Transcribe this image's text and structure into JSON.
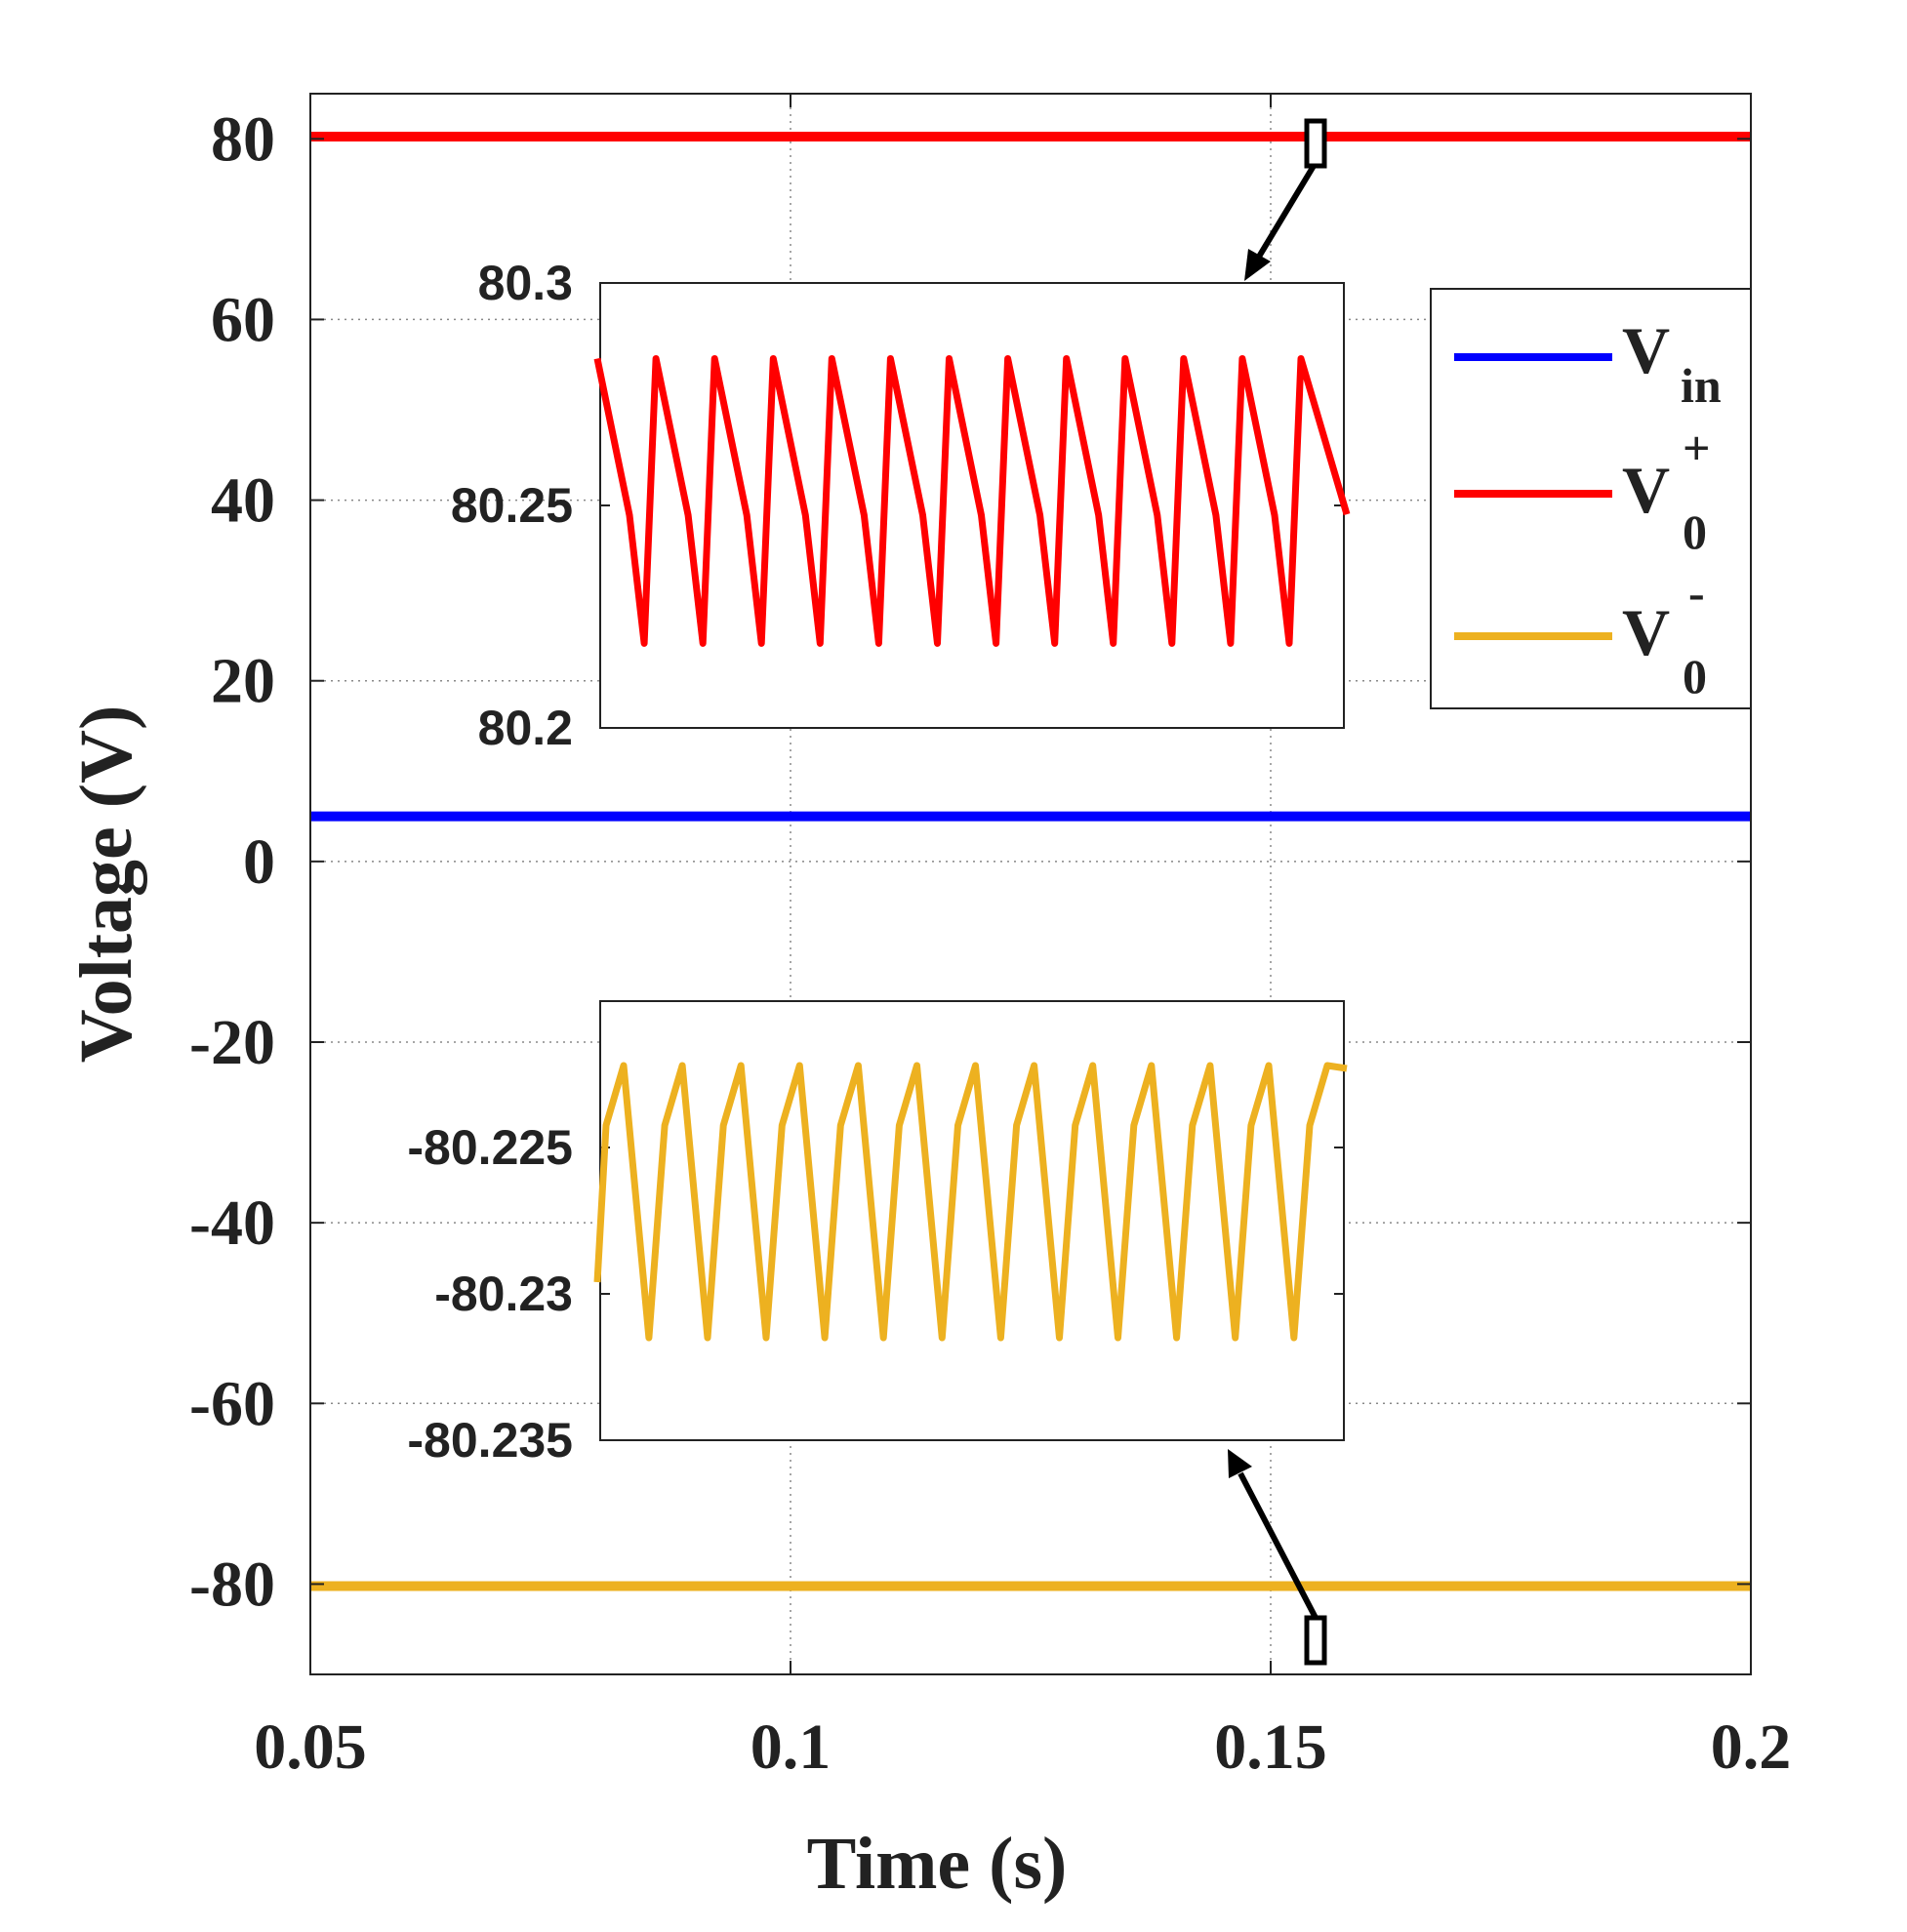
{
  "chart_data": {
    "type": "line",
    "title": "",
    "xlabel": "Time (s)",
    "ylabel": "Voltage (V)",
    "xlim": [
      0.05,
      0.2
    ],
    "ylim": [
      -90,
      85
    ],
    "xticks": [
      0.05,
      0.1,
      0.15,
      0.2
    ],
    "xtick_labels": [
      "0.05",
      "0.1",
      "0.15",
      "0.2"
    ],
    "yticks": [
      80,
      60,
      40,
      20,
      0,
      -20,
      -40,
      -60,
      -80
    ],
    "ytick_labels": [
      "80",
      "60",
      "40",
      "20",
      "0",
      "-20",
      "-40",
      "-60",
      "-80"
    ],
    "grid": true,
    "legend_position": "right",
    "series": [
      {
        "key": "vin",
        "name": "V",
        "sub": "in",
        "sup": "",
        "color": "#0000ff",
        "x": [
          0.05,
          0.2
        ],
        "y": [
          5,
          5
        ]
      },
      {
        "key": "vpos",
        "name": "V",
        "sub": "0",
        "sup": "+",
        "color": "#ff0000",
        "x": [
          0.05,
          0.2
        ],
        "y": [
          80.25,
          80.25
        ]
      },
      {
        "key": "vneg",
        "name": "V",
        "sub": "0",
        "sup": "-",
        "color": "#edb120",
        "x": [
          0.05,
          0.2
        ],
        "y": [
          -80.23,
          -80.23
        ]
      }
    ],
    "insets": [
      {
        "key": "inset-positive",
        "series_key": "vpos",
        "color": "#ff0000",
        "ylim": [
          80.2,
          80.3
        ],
        "yticks": [
          80.3,
          80.25,
          80.2
        ],
        "ytick_labels": [
          "80.3",
          "80.25",
          "80.2"
        ],
        "peak": 80.283,
        "trough": 80.219,
        "start": 80.283,
        "end": 80.248,
        "cycles": 13
      },
      {
        "key": "inset-negative",
        "series_key": "vneg",
        "color": "#edb120",
        "ylim": [
          -80.235,
          -80.22
        ],
        "yticks": [
          -80.225,
          -80.23,
          -80.235
        ],
        "ytick_labels": [
          "-80.225",
          "-80.23",
          "-80.235"
        ],
        "peak": -80.2222,
        "trough": -80.2315,
        "start": -80.2296,
        "end": -80.2223,
        "cycles": 13
      }
    ]
  }
}
